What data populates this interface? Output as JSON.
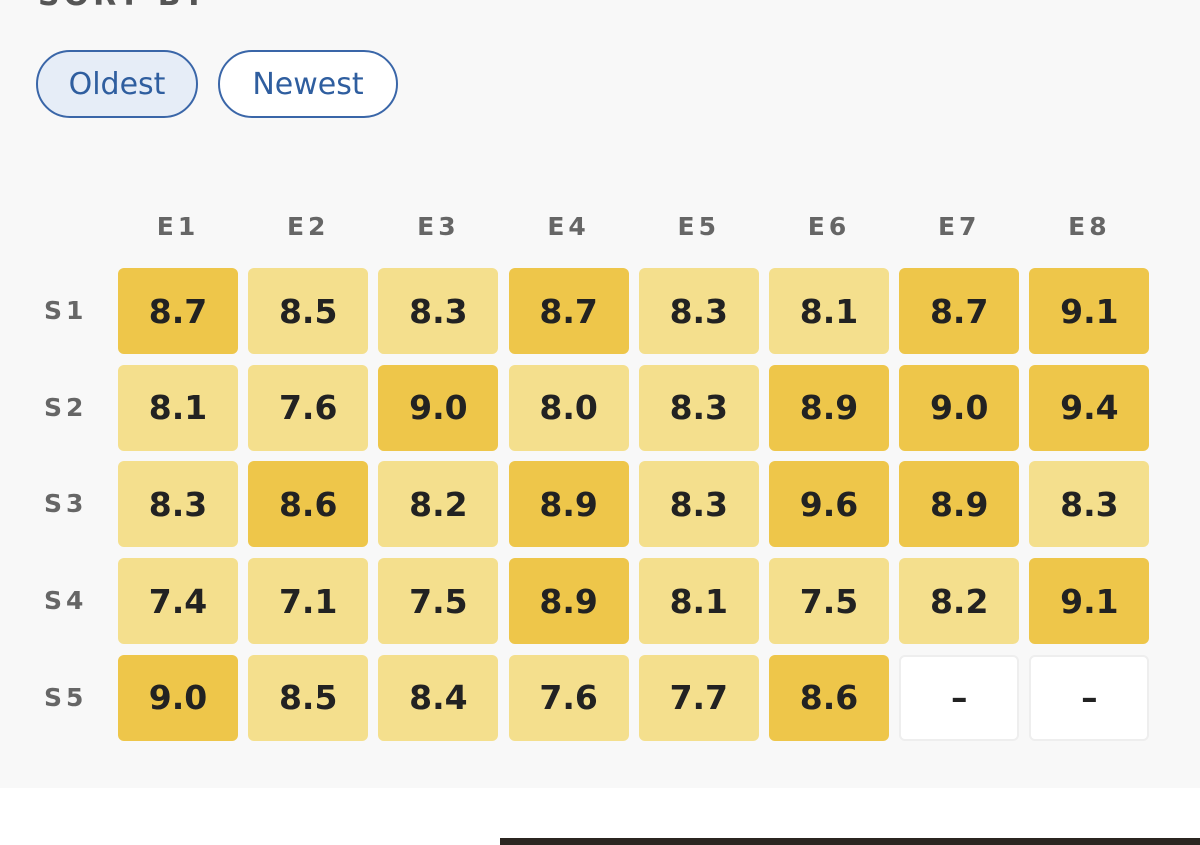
{
  "header": {
    "title": "SORT BY"
  },
  "sort_buttons": [
    {
      "label": "Oldest",
      "selected": true
    },
    {
      "label": "Newest",
      "selected": false
    }
  ],
  "table": {
    "columns": [
      "E1",
      "E2",
      "E3",
      "E4",
      "E5",
      "E6",
      "E7",
      "E8"
    ],
    "rows": [
      {
        "label": "S1",
        "cells": [
          {
            "text": "8.7",
            "color": "#eec64a"
          },
          {
            "text": "8.5",
            "color": "#f4df8d"
          },
          {
            "text": "8.3",
            "color": "#f4df8d"
          },
          {
            "text": "8.7",
            "color": "#eec64a"
          },
          {
            "text": "8.3",
            "color": "#f4df8d"
          },
          {
            "text": "8.1",
            "color": "#f4df8d"
          },
          {
            "text": "8.7",
            "color": "#eec64a"
          },
          {
            "text": "9.1",
            "color": "#eec64a"
          }
        ]
      },
      {
        "label": "S2",
        "cells": [
          {
            "text": "8.1",
            "color": "#f4df8d"
          },
          {
            "text": "7.6",
            "color": "#f4df8d"
          },
          {
            "text": "9.0",
            "color": "#eec64a"
          },
          {
            "text": "8.0",
            "color": "#f4df8d"
          },
          {
            "text": "8.3",
            "color": "#f4df8d"
          },
          {
            "text": "8.9",
            "color": "#eec64a"
          },
          {
            "text": "9.0",
            "color": "#eec64a"
          },
          {
            "text": "9.4",
            "color": "#eec64a"
          }
        ]
      },
      {
        "label": "S3",
        "cells": [
          {
            "text": "8.3",
            "color": "#f4df8d"
          },
          {
            "text": "8.6",
            "color": "#eec64a"
          },
          {
            "text": "8.2",
            "color": "#f4df8d"
          },
          {
            "text": "8.9",
            "color": "#eec64a"
          },
          {
            "text": "8.3",
            "color": "#f4df8d"
          },
          {
            "text": "9.6",
            "color": "#eec64a"
          },
          {
            "text": "8.9",
            "color": "#eec64a"
          },
          {
            "text": "8.3",
            "color": "#f4df8d"
          }
        ]
      },
      {
        "label": "S4",
        "cells": [
          {
            "text": "7.4",
            "color": "#f4df8d"
          },
          {
            "text": "7.1",
            "color": "#f4df8d"
          },
          {
            "text": "7.5",
            "color": "#f4df8d"
          },
          {
            "text": "8.9",
            "color": "#eec64a"
          },
          {
            "text": "8.1",
            "color": "#f4df8d"
          },
          {
            "text": "7.5",
            "color": "#f4df8d"
          },
          {
            "text": "8.2",
            "color": "#f4df8d"
          },
          {
            "text": "9.1",
            "color": "#eec64a"
          }
        ]
      },
      {
        "label": "S5",
        "cells": [
          {
            "text": "9.0",
            "color": "#eec64a"
          },
          {
            "text": "8.5",
            "color": "#f4df8d"
          },
          {
            "text": "8.4",
            "color": "#f4df8d"
          },
          {
            "text": "7.6",
            "color": "#f4df8d"
          },
          {
            "text": "7.7",
            "color": "#f4df8d"
          },
          {
            "text": "8.6",
            "color": "#eec64a"
          },
          {
            "text": "–",
            "color": "#ffffff"
          },
          {
            "text": "–",
            "color": "#ffffff"
          }
        ]
      }
    ]
  }
}
